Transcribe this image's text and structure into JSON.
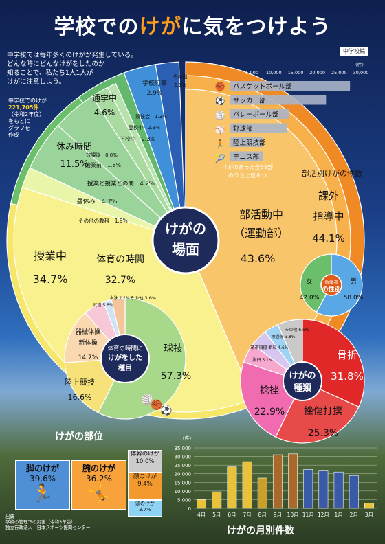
{
  "title_parts": [
    "学校での",
    "けが",
    "に気をつけよう"
  ],
  "badge": "中学校編",
  "intro": {
    "lines": [
      "中学校では毎年多くのけがが発生している。",
      "どんな時にどんなけがをしたのか",
      "知ることで、私たち1人1人が",
      "けがに注意しよう。"
    ]
  },
  "total_note": {
    "line1": "中学校でのけが",
    "count": "221,705件",
    "line3": "（令和2年度）",
    "line4": "をもとに",
    "line5": "グラフを",
    "line6": "作成"
  },
  "center_label": [
    "けがの",
    "場面"
  ],
  "colors": {
    "orange": "#f08a24",
    "green": "#6cbf6a",
    "yellow": "#f6e66a",
    "blue": "#3b82d6",
    "red": "#e53935",
    "pink": "#f06bb0"
  },
  "chart_data": [
    {
      "id": "scenes",
      "type": "pie",
      "title": "けがの場面",
      "slices": [
        {
          "label": "部活動中（運動部）",
          "value": 43.6
        },
        {
          "label": "授業中",
          "value": 34.7
        },
        {
          "label": "休み時間",
          "value": 11.5
        },
        {
          "label": "通学中",
          "value": 4.6
        },
        {
          "label": "学校行事",
          "value": 2.9
        },
        {
          "label": "その他",
          "value": 2.1
        }
      ],
      "sub_class": [
        {
          "label": "体育の時間",
          "value": 32.7
        },
        {
          "label": "その他の教科",
          "value": 1.9
        },
        {
          "label": "昼休み",
          "value": 4.7
        },
        {
          "label": "授業と授業との間",
          "value": 4.2
        },
        {
          "label": "始業前",
          "value": 1.8
        },
        {
          "label": "放課後",
          "value": 0.8
        },
        {
          "label": "下校中",
          "value": 2.3
        },
        {
          "label": "登校中",
          "value": 2.3
        },
        {
          "label": "競技会",
          "value": 1.3
        },
        {
          "label": "その他行事",
          "value": 1.6
        }
      ],
      "sub_labels_visible": [
        {
          "text": "体育の時間",
          "value": "32.7%"
        },
        {
          "text": "その他の教科",
          "value": "1.9%"
        },
        {
          "text": "昼休み",
          "value": "4.7%"
        },
        {
          "text": "授業と授業との間",
          "value": "4.2%"
        },
        {
          "text": "始業前",
          "value": "1.8%"
        },
        {
          "text": "放課後",
          "value": "0.8%"
        },
        {
          "text": "下校中",
          "value": "2.3%"
        },
        {
          "text": "登校中",
          "value": "2.3%"
        },
        {
          "text": "競技会",
          "value": "1.3%"
        }
      ]
    },
    {
      "id": "club",
      "type": "bar",
      "title": "部活別けがの件数",
      "categories": [
        "バスケットボール部",
        "サッカー部",
        "バレーボール部",
        "野球部",
        "陸上競技部",
        "テニス部"
      ],
      "values": [
        27500,
        22000,
        13500,
        13000,
        7500,
        7500
      ],
      "x_ticks": [
        "5,000",
        "10,000",
        "15,000",
        "20,000",
        "25,000",
        "30,000"
      ],
      "unit": "（件）",
      "note": [
        "けがのあった全39部",
        "のうち上位６つ"
      ]
    },
    {
      "id": "gender",
      "type": "pie",
      "title": "負傷者の性別",
      "slices": [
        {
          "label": "男",
          "value": 58.0
        },
        {
          "label": "女",
          "value": 42.0
        }
      ]
    },
    {
      "id": "pe_type",
      "type": "pie",
      "title": "体育の時間にけがをした種目",
      "slices": [
        {
          "label": "球技",
          "value": 57.3
        },
        {
          "label": "陸上競技",
          "value": 16.6
        },
        {
          "label": "器械体操 新体操",
          "value": 14.7
        },
        {
          "label": "武道",
          "value": 5.6
        },
        {
          "label": "水泳",
          "value": 2.2
        },
        {
          "label": "その他",
          "value": 3.6
        }
      ]
    },
    {
      "id": "injury_type",
      "type": "pie",
      "title": "けがの種類",
      "slices": [
        {
          "label": "骨折",
          "value": 31.8
        },
        {
          "label": "挫傷打撲",
          "value": 25.3
        },
        {
          "label": "捻挫",
          "value": 22.9
        },
        {
          "label": "脱臼",
          "value": 5.1
        },
        {
          "label": "靭帯損傷 断裂",
          "value": 4.6
        },
        {
          "label": "擦過傷",
          "value": 3.8
        },
        {
          "label": "その他",
          "value": 6.5
        }
      ]
    },
    {
      "id": "body_part",
      "type": "table",
      "title": "けがの部位",
      "rows": [
        {
          "label": "脚のけが",
          "value": "39.6%"
        },
        {
          "label": "腕のけが",
          "value": "36.2%"
        },
        {
          "label": "体幹のけが",
          "value": "10.0%"
        },
        {
          "label": "顔のけが",
          "value": "9.4%"
        },
        {
          "label": "頭のけが",
          "value": "3.7%"
        }
      ]
    },
    {
      "id": "monthly",
      "type": "bar",
      "title": "けがの月別件数",
      "categories": [
        "4月",
        "5月",
        "6月",
        "7月",
        "8月",
        "9月",
        "10月",
        "11月",
        "12月",
        "1月",
        "2月",
        "3月"
      ],
      "values": [
        5000,
        9500,
        24000,
        27000,
        17500,
        31000,
        31500,
        22500,
        22000,
        21000,
        19000,
        3000
      ],
      "ylim": [
        0,
        35000
      ],
      "y_ticks": [
        "0",
        "5,000",
        "10,000",
        "15,000",
        "20,000",
        "25,000",
        "30,000",
        "35,000"
      ],
      "unit": "（件）"
    }
  ],
  "source": [
    "出典",
    "学校の管理下の災害（令和3年版）",
    "独立行政法人　日本スポーツ振興センター"
  ]
}
